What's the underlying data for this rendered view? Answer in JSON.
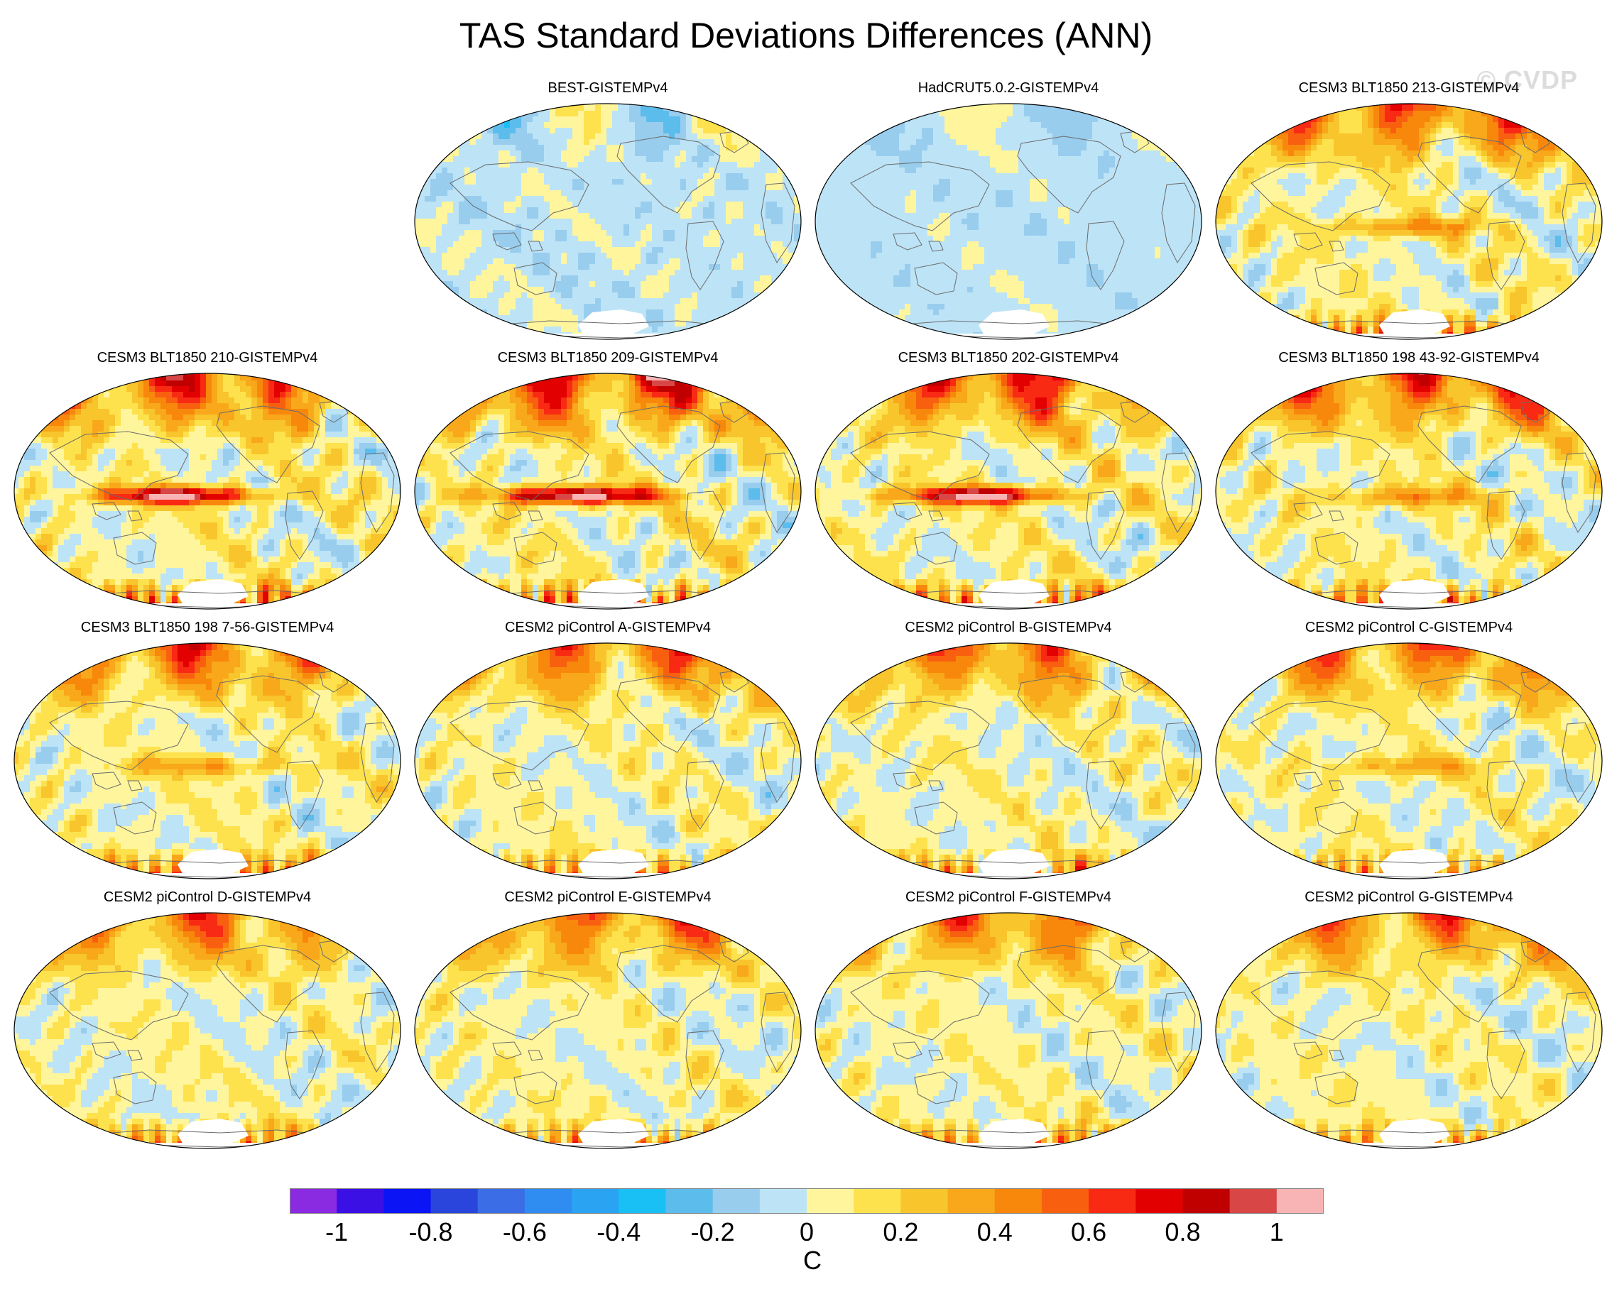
{
  "title": "TAS Standard Deviations Differences (ANN)",
  "watermark": "© CVDP",
  "panels": [
    {
      "title": "BEST-GISTEMPv4",
      "pattern": "obs1",
      "amp": 0.5
    },
    {
      "title": "HadCRUT5.0.2-GISTEMPv4",
      "pattern": "obs2",
      "amp": 0.4
    },
    {
      "title": "CESM3 BLT1850 213-GISTEMPv4",
      "pattern": "model",
      "amp": 1.0
    },
    {
      "title": "CESM3 BLT1850 210-GISTEMPv4",
      "pattern": "enso",
      "amp": 1.1
    },
    {
      "title": "CESM3 BLT1850 209-GISTEMPv4",
      "pattern": "enso",
      "amp": 1.2
    },
    {
      "title": "CESM3 BLT1850 202-GISTEMPv4",
      "pattern": "enso",
      "amp": 1.1
    },
    {
      "title": "CESM3 BLT1850 198 43-92-GISTEMPv4",
      "pattern": "model",
      "amp": 1.05
    },
    {
      "title": "CESM3 BLT1850 198 7-56-GISTEMPv4",
      "pattern": "model",
      "amp": 0.95
    },
    {
      "title": "CESM2 piControl A-GISTEMPv4",
      "pattern": "pic",
      "amp": 0.9
    },
    {
      "title": "CESM2 piControl B-GISTEMPv4",
      "pattern": "pic",
      "amp": 0.9
    },
    {
      "title": "CESM2 piControl C-GISTEMPv4",
      "pattern": "model",
      "amp": 0.9
    },
    {
      "title": "CESM2 piControl D-GISTEMPv4",
      "pattern": "pic",
      "amp": 0.85
    },
    {
      "title": "CESM2 piControl E-GISTEMPv4",
      "pattern": "pic",
      "amp": 0.85
    },
    {
      "title": "CESM2 piControl F-GISTEMPv4",
      "pattern": "pic",
      "amp": 0.85
    },
    {
      "title": "CESM2 piControl G-GISTEMPv4",
      "pattern": "pic",
      "amp": 0.85
    }
  ],
  "colorbar": {
    "unit": "C",
    "labels": [
      "-1",
      "-0.8",
      "-0.6",
      "-0.4",
      "-0.2",
      "0",
      "0.2",
      "0.4",
      "0.6",
      "0.8",
      "1"
    ],
    "colors": [
      "#8a2be2",
      "#3a10e5",
      "#0a14f5",
      "#2a45dc",
      "#3a6de6",
      "#2f8cf0",
      "#2aa4f2",
      "#19c0f6",
      "#5cbcec",
      "#98cdee",
      "#bde3f6",
      "#fff59d",
      "#fde24e",
      "#f8c52c",
      "#f8a81a",
      "#f8880c",
      "#f86010",
      "#f82a14",
      "#e30000",
      "#c00000",
      "#d84646",
      "#f8b4b4"
    ]
  }
}
